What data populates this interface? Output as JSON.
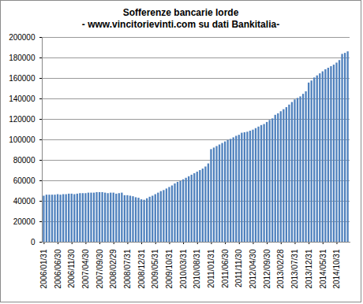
{
  "chart_data": {
    "type": "bar",
    "title": "Sofferenze bancarie  lorde",
    "subtitle": "- www.vincitorievinti.com su dati Bankitalia-",
    "categories": [
      "2006/01/31",
      null,
      null,
      null,
      null,
      "2006/06/30",
      null,
      null,
      null,
      null,
      "2006/11/30",
      null,
      null,
      null,
      null,
      "2007/04/30",
      null,
      null,
      null,
      null,
      "2007/09/30",
      null,
      null,
      null,
      null,
      "2008/02/29",
      null,
      null,
      null,
      null,
      "2008/07/31",
      null,
      null,
      null,
      null,
      "2008/12/31",
      null,
      null,
      null,
      null,
      "2009/05/31",
      null,
      null,
      null,
      null,
      "2009/10/31",
      null,
      null,
      null,
      null,
      "2010/03/31",
      null,
      null,
      null,
      null,
      "2010/08/31",
      null,
      null,
      null,
      null,
      "2011/01/31",
      null,
      null,
      null,
      null,
      "2011/06/30",
      null,
      null,
      null,
      null,
      "2011/11/30",
      null,
      null,
      null,
      null,
      "2012/04/30",
      null,
      null,
      null,
      null,
      "2012/09/30",
      null,
      null,
      null,
      null,
      "2013/02/28",
      null,
      null,
      null,
      null,
      "2013/07/31",
      null,
      null,
      null,
      null,
      "2013/12/31",
      null,
      null,
      null,
      null,
      "2014/05/31",
      null,
      null,
      null,
      null,
      "2014/10/31",
      null,
      null,
      null,
      null
    ],
    "values": [
      45000,
      46000,
      46000,
      46000,
      46000,
      46500,
      46000,
      46500,
      46500,
      47000,
      47000,
      46500,
      47000,
      47500,
      47500,
      47500,
      48000,
      48000,
      48000,
      48500,
      48500,
      48500,
      48000,
      47500,
      48000,
      48000,
      47000,
      47500,
      48000,
      45500,
      45500,
      45000,
      44500,
      43500,
      43000,
      41500,
      41000,
      42500,
      44000,
      45000,
      46500,
      48000,
      49500,
      50500,
      52000,
      53500,
      55000,
      57000,
      58500,
      59500,
      61000,
      62500,
      64000,
      65500,
      67000,
      68500,
      70000,
      71500,
      73500,
      76500,
      90500,
      92000,
      93500,
      95000,
      96500,
      98000,
      99500,
      100500,
      102000,
      103500,
      104500,
      106500,
      107000,
      107500,
      108500,
      109500,
      111000,
      112500,
      114000,
      115000,
      117000,
      119000,
      120500,
      124000,
      125500,
      127500,
      129500,
      131500,
      134000,
      136500,
      139000,
      140500,
      142000,
      144500,
      147000,
      155500,
      157500,
      160500,
      162500,
      164500,
      166500,
      168500,
      170000,
      171500,
      173000,
      175000,
      177500,
      183500,
      184500,
      186000
    ],
    "color": "#4f81bd",
    "ylim": [
      0,
      200000
    ],
    "yticks": [
      0,
      20000,
      40000,
      60000,
      80000,
      100000,
      120000,
      140000,
      160000,
      180000,
      200000
    ],
    "grid": true
  }
}
